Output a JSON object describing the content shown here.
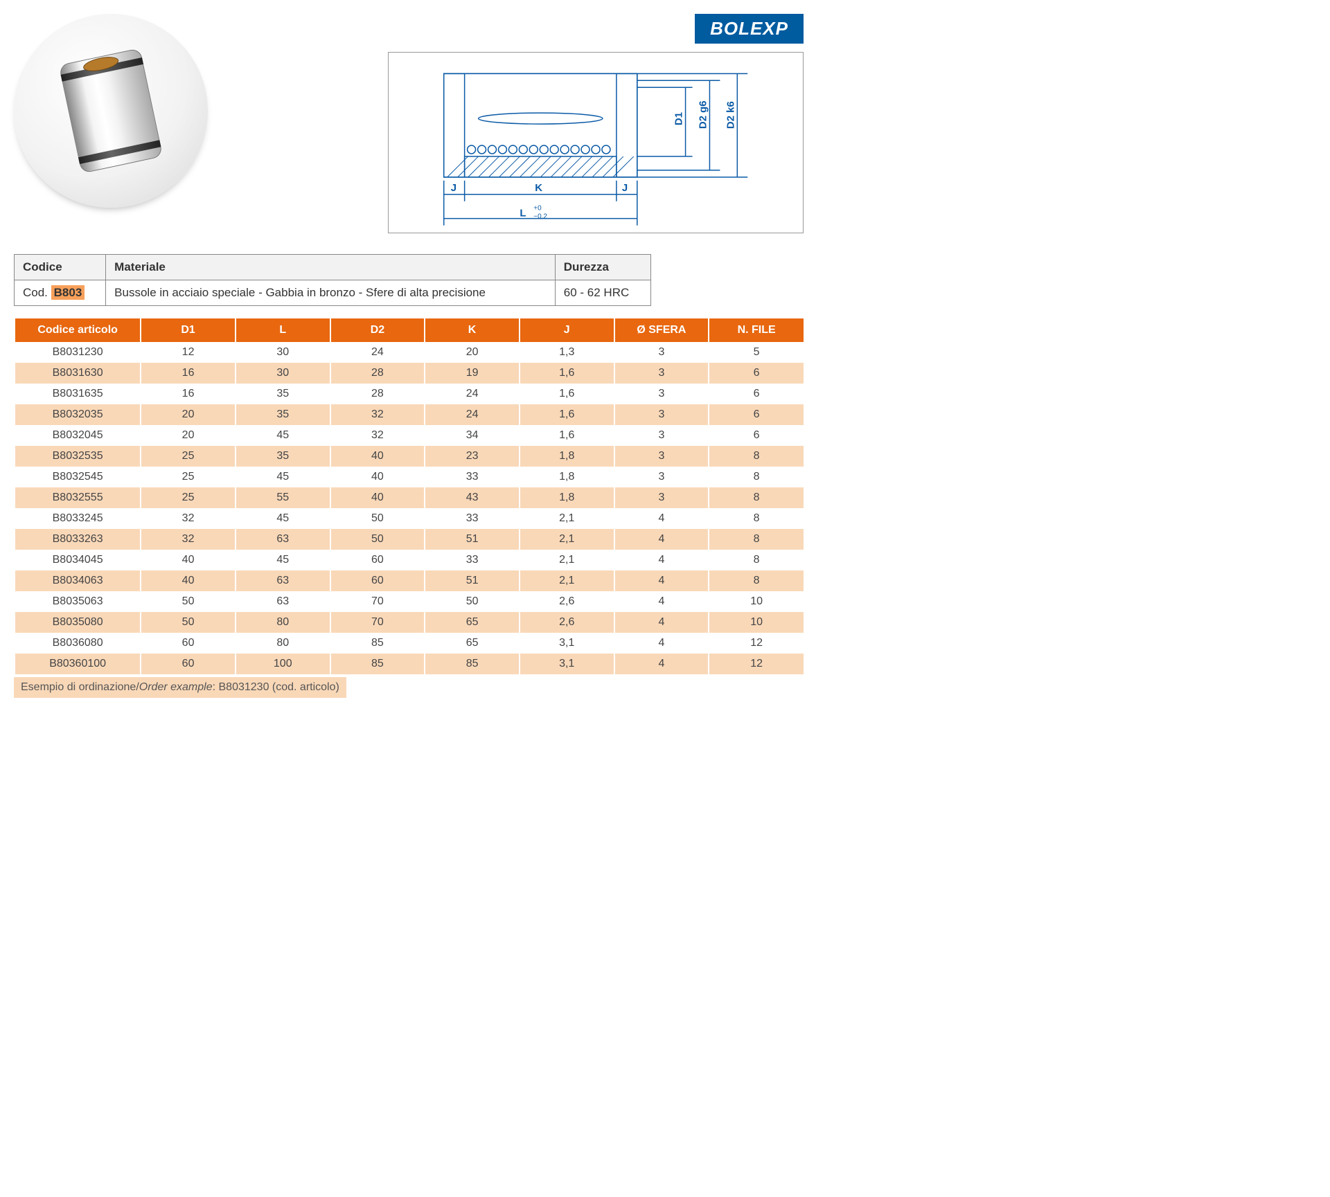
{
  "brand": "BOLEXP",
  "drawing_labels": {
    "d1": "D1",
    "d2g6": "D2 g6",
    "d2k6": "D2 k6",
    "j_left": "J",
    "j_right": "J",
    "k": "K",
    "l": "L",
    "l_tol": "+0\n−0.2"
  },
  "info_headers": {
    "codice": "Codice",
    "materiale": "Materiale",
    "durezza": "Durezza"
  },
  "info_row": {
    "code_prefix": "Cod. ",
    "code": "B803",
    "materiale": "Bussole in acciaio speciale - Gabbia in bronzo - Sfere di alta precisione",
    "durezza": "60 - 62 HRC"
  },
  "data_headers": [
    "Codice articolo",
    "D1",
    "L",
    "D2",
    "K",
    "J",
    "Ø SFERA",
    "N. FILE"
  ],
  "data_rows": [
    [
      "B8031230",
      "12",
      "30",
      "24",
      "20",
      "1,3",
      "3",
      "5"
    ],
    [
      "B8031630",
      "16",
      "30",
      "28",
      "19",
      "1,6",
      "3",
      "6"
    ],
    [
      "B8031635",
      "16",
      "35",
      "28",
      "24",
      "1,6",
      "3",
      "6"
    ],
    [
      "B8032035",
      "20",
      "35",
      "32",
      "24",
      "1,6",
      "3",
      "6"
    ],
    [
      "B8032045",
      "20",
      "45",
      "32",
      "34",
      "1,6",
      "3",
      "6"
    ],
    [
      "B8032535",
      "25",
      "35",
      "40",
      "23",
      "1,8",
      "3",
      "8"
    ],
    [
      "B8032545",
      "25",
      "45",
      "40",
      "33",
      "1,8",
      "3",
      "8"
    ],
    [
      "B8032555",
      "25",
      "55",
      "40",
      "43",
      "1,8",
      "3",
      "8"
    ],
    [
      "B8033245",
      "32",
      "45",
      "50",
      "33",
      "2,1",
      "4",
      "8"
    ],
    [
      "B8033263",
      "32",
      "63",
      "50",
      "51",
      "2,1",
      "4",
      "8"
    ],
    [
      "B8034045",
      "40",
      "45",
      "60",
      "33",
      "2,1",
      "4",
      "8"
    ],
    [
      "B8034063",
      "40",
      "63",
      "60",
      "51",
      "2,1",
      "4",
      "8"
    ],
    [
      "B8035063",
      "50",
      "63",
      "70",
      "50",
      "2,6",
      "4",
      "10"
    ],
    [
      "B8035080",
      "50",
      "80",
      "70",
      "65",
      "2,6",
      "4",
      "10"
    ],
    [
      "B8036080",
      "60",
      "80",
      "85",
      "65",
      "3,1",
      "4",
      "12"
    ],
    [
      "B80360100",
      "60",
      "100",
      "85",
      "85",
      "3,1",
      "4",
      "12"
    ]
  ],
  "example": {
    "it": "Esempio di ordinazione",
    "en": "Order example",
    "value": "B8031230 (cod. articolo)"
  },
  "colors": {
    "brand_bg": "#005b9f",
    "header_bg": "#e8670f",
    "stripe_bg": "#f9d8b8",
    "code_highlight": "#f7a05a",
    "drawing_stroke": "#0a5aa6"
  },
  "col_widths_pct": [
    16,
    12,
    12,
    12,
    12,
    12,
    12,
    12
  ]
}
